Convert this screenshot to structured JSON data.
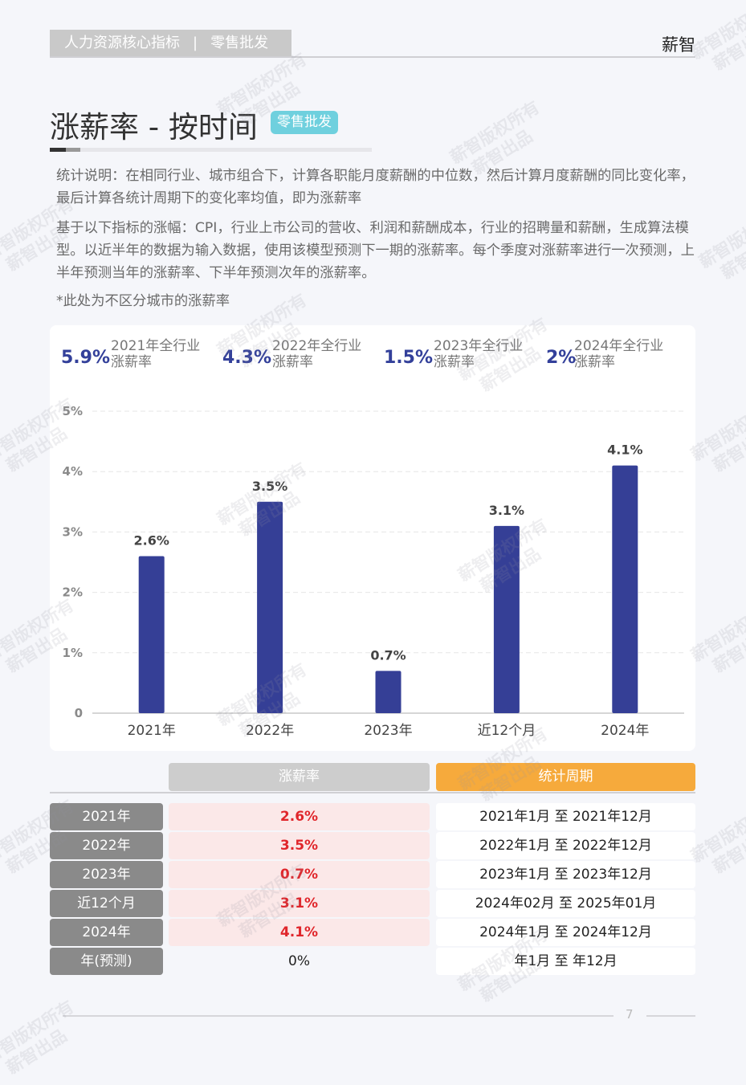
{
  "header": {
    "section": "人力资源核心指标",
    "divider": "|",
    "industry": "零售批发",
    "brand": "薪智"
  },
  "title": "涨薪率 - 按时间",
  "title_tag": "零售批发",
  "notes": [
    "统计说明：在相同行业、城市组合下，计算各职能月度薪酬的中位数，然后计算月度薪酬的同比变化率，最后计算各统计周期下的变化率均值，即为涨薪率",
    "基于以下指标的涨幅：CPI，行业上市公司的营收、利润和薪酬成本，行业的招聘量和薪酬，生成算法模型。以近半年的数据为输入数据，使用该模型预测下一期的涨薪率。每个季度对涨薪率进行一次预测，上半年预测当年的涨薪率、下半年预测次年的涨薪率。",
    "*此处为不区分城市的涨薪率"
  ],
  "kpis": [
    {
      "value": "5.9%",
      "label": [
        "2021年全行业",
        "涨薪率"
      ]
    },
    {
      "value": "4.3%",
      "label": [
        "2022年全行业",
        "涨薪率"
      ]
    },
    {
      "value": "1.5%",
      "label": [
        "2023年全行业",
        "涨薪率"
      ]
    },
    {
      "value": "2%",
      "label": [
        "2024年全行业",
        "涨薪率"
      ]
    }
  ],
  "chart_data": {
    "type": "bar",
    "categories": [
      "2021年",
      "2022年",
      "2023年",
      "近12个月",
      "2024年"
    ],
    "values": [
      2.6,
      3.5,
      0.7,
      3.1,
      4.1
    ],
    "value_labels": [
      "2.6%",
      "3.5%",
      "0.7%",
      "3.1%",
      "4.1%"
    ],
    "color": "#353f96",
    "ylim": [
      0,
      5
    ],
    "yticks": [
      0,
      {
        "value": 1,
        "label": "1%"
      },
      {
        "value": 2,
        "label": "2%"
      },
      {
        "value": 3,
        "label": "3%"
      },
      {
        "value": 4,
        "label": "4%"
      },
      {
        "value": 5,
        "label": "5%"
      }
    ],
    "grid": true
  },
  "table": {
    "headers": [
      "涨薪率",
      "统计周期"
    ],
    "rows": [
      [
        "2021年",
        "2.6%",
        "2021年1月 至 2021年12月"
      ],
      [
        "2022年",
        "3.5%",
        "2022年1月 至 2022年12月"
      ],
      [
        "2023年",
        "0.7%",
        "2023年1月 至 2023年12月"
      ],
      [
        "近12个月",
        "3.1%",
        "2024年02月 至 2025年01月"
      ],
      [
        "2024年",
        "4.1%",
        "2024年1月 至 2024年12月"
      ],
      [
        "年(预测)",
        "0%",
        "年1月 至 年12月"
      ]
    ]
  },
  "page_number": "7",
  "watermark": [
    "薪智版权所有",
    "薪智出品"
  ]
}
